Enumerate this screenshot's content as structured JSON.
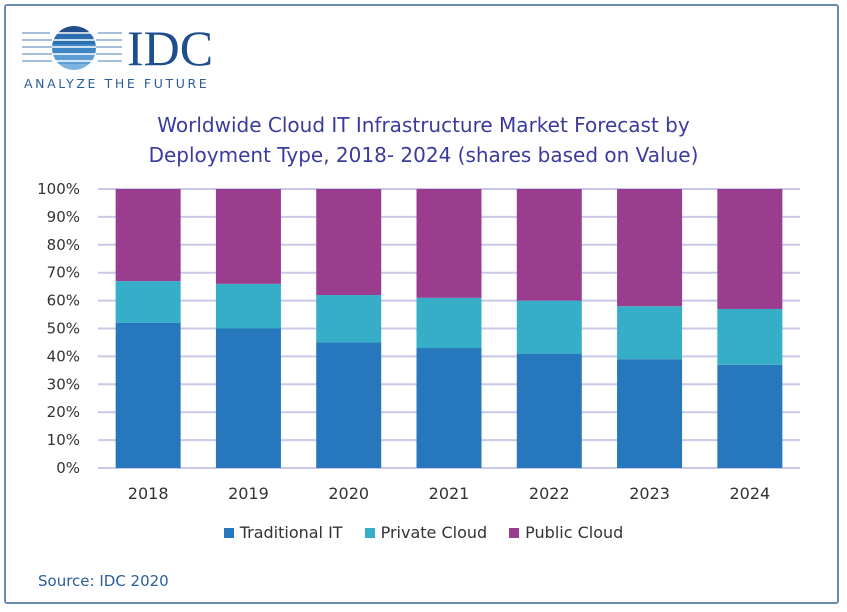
{
  "logo": {
    "text": "IDC",
    "tagline": "ANALYZE THE FUTURE"
  },
  "colors": {
    "traditional": "#2677bb",
    "private": "#37aec8",
    "public": "#9b3d8f",
    "grid": "#c8c8e8",
    "title": "#3b3b9c"
  },
  "chart_data": {
    "type": "bar",
    "stacked": true,
    "title_lines": [
      "Worldwide Cloud IT Infrastructure Market Forecast by",
      "Deployment Type, 2018- 2024 (shares based on Value)"
    ],
    "categories": [
      "2018",
      "2019",
      "2020",
      "2021",
      "2022",
      "2023",
      "2024"
    ],
    "series": [
      {
        "name": "Traditional IT",
        "values": [
          52,
          50,
          45,
          43,
          41,
          39,
          37
        ]
      },
      {
        "name": "Private Cloud",
        "values": [
          15,
          16,
          17,
          18,
          19,
          19,
          20
        ]
      },
      {
        "name": "Public Cloud",
        "values": [
          33,
          34,
          38,
          39,
          40,
          42,
          43
        ]
      }
    ],
    "ylim": [
      0,
      100
    ],
    "yticks": [
      "0%",
      "10%",
      "20%",
      "30%",
      "40%",
      "50%",
      "60%",
      "70%",
      "80%",
      "90%",
      "100%"
    ],
    "grid": true,
    "legend_position": "bottom"
  },
  "source": "Source: IDC 2020"
}
